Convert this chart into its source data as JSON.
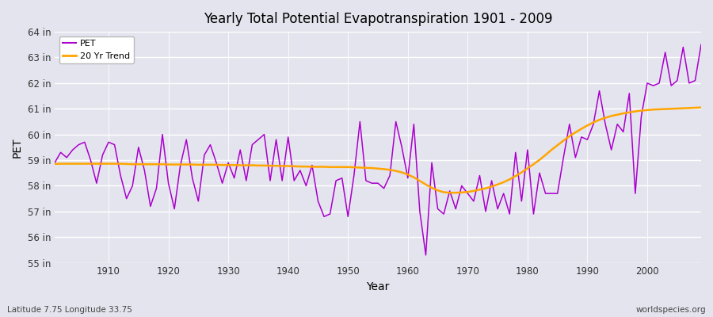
{
  "title": "Yearly Total Potential Evapotranspiration 1901 - 2009",
  "ylabel": "PET",
  "xlabel": "Year",
  "subtitle_left": "Latitude 7.75 Longitude 33.75",
  "subtitle_right": "worldspecies.org",
  "pet_color": "#AA00CC",
  "trend_color": "#FFA500",
  "bg_color": "#E4E4EE",
  "ylim_min": 55,
  "ylim_max": 64,
  "yticks": [
    55,
    56,
    57,
    58,
    59,
    60,
    61,
    62,
    63,
    64
  ],
  "ytick_labels": [
    "55 in",
    "56 in",
    "57 in",
    "58 in",
    "59 in",
    "60 in",
    "61 in",
    "62 in",
    "63 in",
    "64 in"
  ],
  "xticks": [
    1910,
    1920,
    1930,
    1940,
    1950,
    1960,
    1970,
    1980,
    1990,
    2000
  ],
  "xlim_min": 1901,
  "xlim_max": 2009,
  "years": [
    1901,
    1902,
    1903,
    1904,
    1905,
    1906,
    1907,
    1908,
    1909,
    1910,
    1911,
    1912,
    1913,
    1914,
    1915,
    1916,
    1917,
    1918,
    1919,
    1920,
    1921,
    1922,
    1923,
    1924,
    1925,
    1926,
    1927,
    1928,
    1929,
    1930,
    1931,
    1932,
    1933,
    1934,
    1935,
    1936,
    1937,
    1938,
    1939,
    1940,
    1941,
    1942,
    1943,
    1944,
    1945,
    1946,
    1947,
    1948,
    1949,
    1950,
    1951,
    1952,
    1953,
    1954,
    1955,
    1956,
    1957,
    1958,
    1959,
    1960,
    1961,
    1962,
    1963,
    1964,
    1965,
    1966,
    1967,
    1968,
    1969,
    1970,
    1971,
    1972,
    1973,
    1974,
    1975,
    1976,
    1977,
    1978,
    1979,
    1980,
    1981,
    1982,
    1983,
    1984,
    1985,
    1986,
    1987,
    1988,
    1989,
    1990,
    1991,
    1992,
    1993,
    1994,
    1995,
    1996,
    1997,
    1998,
    1999,
    2000,
    2001,
    2002,
    2003,
    2004,
    2005,
    2006,
    2007,
    2008,
    2009
  ],
  "pet_values": [
    58.9,
    59.3,
    59.1,
    59.4,
    59.6,
    59.7,
    59.0,
    58.1,
    59.2,
    59.7,
    59.6,
    58.4,
    57.5,
    58.0,
    59.5,
    58.6,
    57.2,
    57.9,
    60.0,
    58.1,
    57.1,
    58.8,
    59.8,
    58.3,
    57.4,
    59.2,
    59.6,
    58.9,
    58.1,
    58.9,
    58.3,
    59.4,
    58.2,
    59.6,
    59.8,
    60.0,
    58.2,
    59.8,
    58.2,
    59.9,
    58.2,
    58.6,
    58.0,
    58.8,
    57.4,
    56.8,
    56.9,
    58.2,
    58.3,
    56.8,
    58.4,
    60.5,
    58.2,
    58.1,
    58.1,
    57.9,
    58.4,
    60.5,
    59.5,
    58.3,
    60.4,
    57.0,
    55.3,
    58.9,
    57.1,
    56.9,
    57.8,
    57.1,
    58.0,
    57.7,
    57.4,
    58.4,
    57.0,
    58.2,
    57.1,
    57.7,
    56.9,
    59.3,
    57.4,
    59.4,
    56.9,
    58.5,
    57.7,
    57.7,
    57.7,
    59.1,
    60.4,
    59.1,
    59.9,
    59.8,
    60.4,
    61.7,
    60.4,
    59.4,
    60.4,
    60.1,
    61.6,
    57.7,
    60.7,
    62.0,
    61.9,
    62.0,
    63.2,
    61.9,
    62.1,
    63.4,
    62.0,
    62.1,
    63.5
  ],
  "trend_values": [
    58.85,
    58.86,
    58.86,
    58.86,
    58.86,
    58.86,
    58.86,
    58.86,
    58.86,
    58.86,
    58.86,
    58.86,
    58.85,
    58.84,
    58.84,
    58.84,
    58.84,
    58.84,
    58.84,
    58.83,
    58.83,
    58.83,
    58.83,
    58.83,
    58.82,
    58.82,
    58.82,
    58.82,
    58.81,
    58.81,
    58.81,
    58.8,
    58.8,
    58.8,
    58.79,
    58.79,
    58.78,
    58.78,
    58.77,
    58.77,
    58.76,
    58.75,
    58.75,
    58.74,
    58.74,
    58.74,
    58.73,
    58.73,
    58.73,
    58.73,
    58.72,
    58.71,
    58.7,
    58.69,
    58.67,
    58.65,
    58.62,
    58.58,
    58.52,
    58.44,
    58.33,
    58.19,
    58.05,
    57.92,
    57.82,
    57.75,
    57.73,
    57.73,
    57.74,
    57.76,
    57.8,
    57.85,
    57.9,
    57.97,
    58.05,
    58.14,
    58.25,
    58.38,
    58.52,
    58.68,
    58.84,
    59.01,
    59.2,
    59.4,
    59.58,
    59.76,
    59.93,
    60.08,
    60.22,
    60.35,
    60.47,
    60.57,
    60.65,
    60.72,
    60.77,
    60.82,
    60.86,
    60.9,
    60.93,
    60.95,
    60.97,
    60.98,
    60.99,
    61.0,
    61.01,
    61.02,
    61.03,
    61.04,
    61.05
  ]
}
